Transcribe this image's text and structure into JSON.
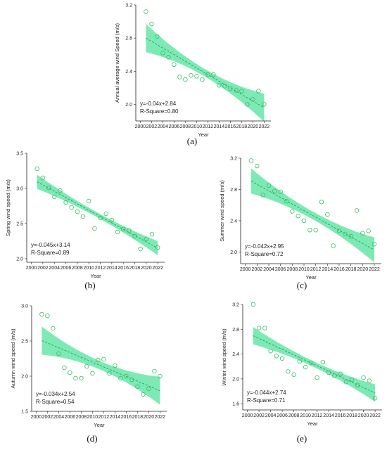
{
  "colors": {
    "band": "#66e6a8",
    "line": "#2aa860",
    "point": "#3dbb64",
    "axis": "#222222"
  },
  "chart_data": [
    {
      "id": "a",
      "panel_label": "(a)",
      "type": "scatter",
      "xlabel": "Year",
      "ylabel": "Annual average wind Speed (m/s)",
      "xlim": [
        1999.2,
        2023.2
      ],
      "ylim": [
        1.8,
        3.2
      ],
      "xticks": [
        "2000",
        "2002",
        "2004",
        "2006",
        "2008",
        "2010",
        "2012",
        "2014",
        "2016",
        "2018",
        "2020",
        "2022"
      ],
      "yticks": [
        "2.0",
        "2.4",
        "2.8",
        "3.2"
      ],
      "x": [
        2001,
        2002,
        2003,
        2004,
        2005,
        2006,
        2007,
        2008,
        2009,
        2010,
        2011,
        2012,
        2013,
        2014,
        2015,
        2016,
        2017,
        2018,
        2019,
        2020,
        2021,
        2022
      ],
      "y": [
        3.12,
        2.97,
        2.82,
        2.62,
        2.57,
        2.48,
        2.33,
        2.3,
        2.35,
        2.34,
        2.3,
        2.36,
        2.36,
        2.23,
        2.22,
        2.19,
        2.17,
        2.16,
        2.0,
        2.06,
        2.16,
        2.0
      ],
      "fit": {
        "slope": -0.04,
        "intercept": 2.84,
        "ci_half_start": 0.17,
        "ci_half_mid": 0.045,
        "ci_half_end": 0.17
      },
      "equation": "y=-0.04x+2.84",
      "r_square": "R-Square=0.80"
    },
    {
      "id": "b",
      "panel_label": "(b)",
      "type": "scatter",
      "xlabel": "Year",
      "ylabel": "Spring wind speed (m/s)",
      "xlim": [
        1999.2,
        2023.2
      ],
      "ylim": [
        1.95,
        3.5
      ],
      "xticks": [
        "2000",
        "2002",
        "2004",
        "2006",
        "2008",
        "2010",
        "2012",
        "2014",
        "2016",
        "2018",
        "2020",
        "2022"
      ],
      "yticks": [
        "2.0",
        "2.5",
        "3.0",
        "3.5"
      ],
      "x": [
        2001,
        2002,
        2003,
        2004,
        2005,
        2006,
        2007,
        2008,
        2009,
        2010,
        2011,
        2012,
        2013,
        2014,
        2015,
        2016,
        2017,
        2018,
        2019,
        2020,
        2021,
        2022
      ],
      "y": [
        3.28,
        3.15,
        3.01,
        2.88,
        2.97,
        2.8,
        2.73,
        2.67,
        2.6,
        2.82,
        2.43,
        2.58,
        2.64,
        2.55,
        2.38,
        2.42,
        2.4,
        2.32,
        2.14,
        2.28,
        2.35,
        2.16
      ],
      "fit": {
        "slope": -0.045,
        "intercept": 3.14,
        "ci_half_start": 0.1,
        "ci_half_mid": 0.035,
        "ci_half_end": 0.1
      },
      "equation": "y=-0.045x+3.14",
      "r_square": "R-Square=0.89"
    },
    {
      "id": "c",
      "panel_label": "(c)",
      "type": "scatter",
      "xlabel": "Year",
      "ylabel": "Summer wind speed (m/s)",
      "xlim": [
        1999.2,
        2023.2
      ],
      "ylim": [
        1.85,
        3.2
      ],
      "xticks": [
        "2000",
        "2002",
        "2004",
        "2006",
        "2008",
        "2010",
        "2012",
        "2014",
        "2016",
        "2018",
        "2020",
        "2022"
      ],
      "yticks": [
        "2.0",
        "2.4",
        "2.8",
        "3.2"
      ],
      "x": [
        2001,
        2002,
        2003,
        2004,
        2005,
        2006,
        2007,
        2008,
        2009,
        2010,
        2011,
        2012,
        2013,
        2014,
        2015,
        2016,
        2017,
        2018,
        2019,
        2020,
        2021,
        2022
      ],
      "y": [
        3.17,
        3.1,
        2.73,
        2.85,
        2.78,
        2.77,
        2.65,
        2.52,
        2.46,
        2.4,
        2.28,
        2.28,
        2.64,
        2.48,
        2.08,
        2.27,
        2.23,
        2.2,
        2.53,
        2.24,
        2.27,
        2.1
      ],
      "fit": {
        "slope": -0.042,
        "intercept": 2.95,
        "ci_half_start": 0.16,
        "ci_half_mid": 0.05,
        "ci_half_end": 0.16
      },
      "equation": "y=-0.042x+2.95",
      "r_square": "R-Square=0.72"
    },
    {
      "id": "d",
      "panel_label": "(d)",
      "type": "scatter",
      "xlabel": "Year",
      "ylabel": "Autumn wind speed (m/s)",
      "xlim": [
        1999.2,
        2023.2
      ],
      "ylim": [
        1.5,
        3.0
      ],
      "xticks": [
        "2000",
        "2002",
        "2004",
        "2006",
        "2008",
        "2010",
        "2012",
        "2014",
        "2016",
        "2018",
        "2020",
        "2022"
      ],
      "yticks": [
        "1.5",
        "2.0",
        "2.5",
        "3.0"
      ],
      "x": [
        2001,
        2002,
        2003,
        2004,
        2005,
        2006,
        2007,
        2008,
        2009,
        2010,
        2011,
        2012,
        2013,
        2014,
        2015,
        2016,
        2017,
        2018,
        2019,
        2020,
        2021,
        2022
      ],
      "y": [
        2.88,
        2.86,
        2.68,
        2.32,
        2.12,
        2.05,
        1.97,
        1.97,
        2.14,
        2.04,
        2.23,
        2.24,
        2.04,
        2.15,
        1.97,
        2.0,
        1.95,
        1.85,
        1.74,
        1.82,
        2.07,
        2.0
      ],
      "fit": {
        "slope": -0.034,
        "intercept": 2.54,
        "ci_half_start": 0.2,
        "ci_half_mid": 0.06,
        "ci_half_end": 0.2
      },
      "equation": "y=-0.034x+2.54",
      "r_square": "R-Square=0.54"
    },
    {
      "id": "e",
      "panel_label": "(e)",
      "type": "scatter",
      "xlabel": "Year",
      "ylabel": "Winter wind speed (m/s)",
      "xlim": [
        1999.2,
        2023.2
      ],
      "ylim": [
        1.5,
        3.2
      ],
      "xticks": [
        "2000",
        "2002",
        "2004",
        "2006",
        "2008",
        "2010",
        "2012",
        "2014",
        "2016",
        "2018",
        "2020",
        "2022"
      ],
      "yticks": [
        "1.6",
        "2.0",
        "2.4",
        "2.8",
        "3.2"
      ],
      "x": [
        2001,
        2002,
        2003,
        2004,
        2005,
        2006,
        2007,
        2008,
        2009,
        2010,
        2011,
        2012,
        2013,
        2014,
        2015,
        2016,
        2017,
        2018,
        2019,
        2020,
        2021,
        2022
      ],
      "y": [
        3.2,
        2.82,
        2.82,
        2.45,
        2.37,
        2.33,
        2.12,
        2.07,
        2.28,
        2.19,
        2.26,
        2.02,
        2.27,
        2.1,
        2.05,
        2.08,
        1.95,
        1.99,
        1.9,
        2.02,
        1.97,
        1.69
      ],
      "fit": {
        "slope": -0.044,
        "intercept": 2.74,
        "ci_half_start": 0.14,
        "ci_half_mid": 0.045,
        "ci_half_end": 0.14
      },
      "equation": "y=-0.044x+2.74",
      "r_square": "R-Square=0.71"
    }
  ]
}
